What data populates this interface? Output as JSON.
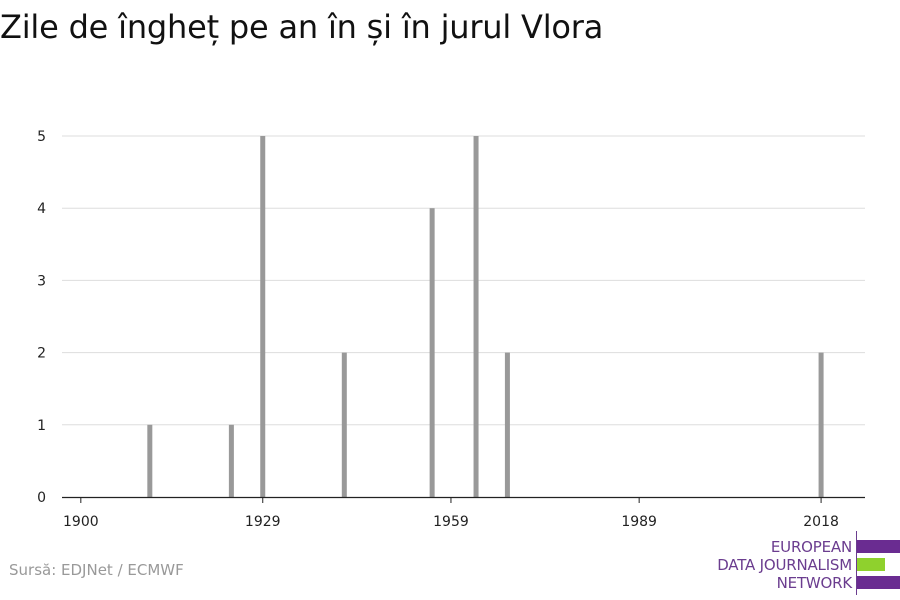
{
  "title": "Zile de îngheț pe an în și în jurul Vlora",
  "source": "Sursă: EDJNet / ECMWF",
  "logo": {
    "lines": [
      "EUROPEAN",
      "DATA JOURNALISM",
      "NETWORK"
    ],
    "colors": {
      "purple": "#6a2c91",
      "green": "#8fd12d"
    }
  },
  "colors": {
    "bar": "#999999",
    "grid": "#dddddd",
    "axis": "#222222"
  },
  "chart_data": {
    "type": "bar",
    "title": "Zile de îngheț pe an în și în jurul Vlora",
    "xlabel": "",
    "ylabel": "",
    "x_ticks": [
      1900,
      1929,
      1959,
      1989,
      2018
    ],
    "y_ticks": [
      0,
      1,
      2,
      3,
      4,
      5
    ],
    "xlim": [
      1897,
      2025
    ],
    "ylim": [
      0,
      5
    ],
    "grid": true,
    "x": [
      1911,
      1924,
      1929,
      1942,
      1956,
      1963,
      1968,
      2018
    ],
    "values": [
      1,
      1,
      5,
      2,
      4,
      5,
      2,
      2
    ]
  }
}
